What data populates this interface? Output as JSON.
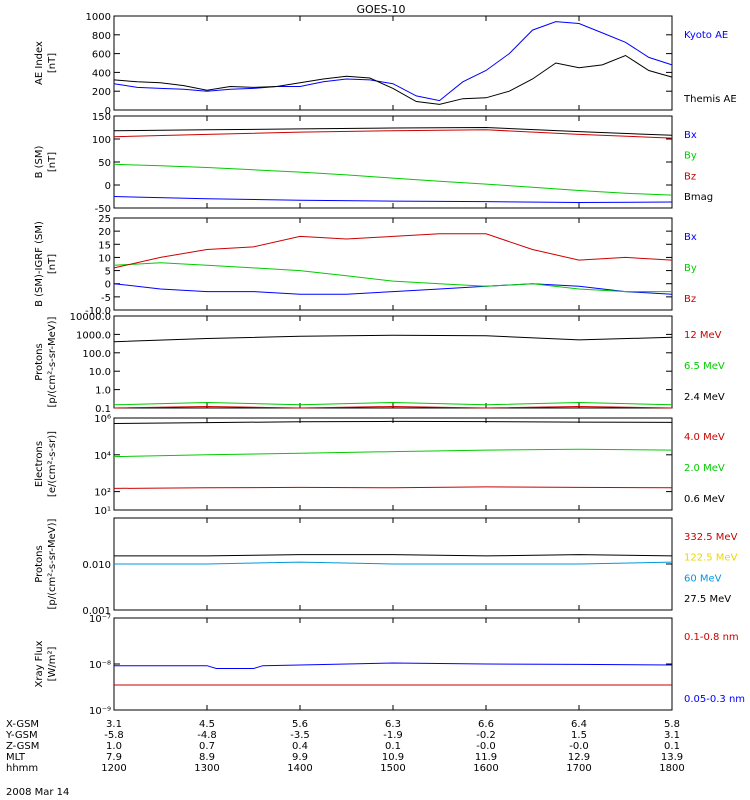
{
  "title": "GOES-10",
  "date_label": "2008 Mar 14",
  "chart_data": [
    {
      "type": "line",
      "ylabel": [
        "AE Index",
        "[nT]"
      ],
      "ylim": [
        0,
        1000
      ],
      "log": false,
      "yticks": [
        0,
        200,
        400,
        600,
        800,
        1000
      ],
      "ytick_labels": [
        "0",
        "200",
        "400",
        "600",
        "800",
        "1000"
      ],
      "legend": [
        {
          "label": "Kyoto AE",
          "color": "#0000ff"
        },
        {
          "label": "Themis AE",
          "color": "#000000"
        }
      ],
      "series": [
        {
          "name": "Kyoto AE",
          "color": "#0000ff",
          "x": [
            12.0,
            12.25,
            12.5,
            12.75,
            13.0,
            13.25,
            13.5,
            13.75,
            14.0,
            14.25,
            14.5,
            14.75,
            15.0,
            15.25,
            15.5,
            15.75,
            16.0,
            16.25,
            16.5,
            16.75,
            17.0,
            17.25,
            17.5,
            17.75,
            18.0
          ],
          "y": [
            280,
            240,
            230,
            220,
            200,
            220,
            230,
            250,
            250,
            300,
            330,
            320,
            280,
            150,
            100,
            300,
            420,
            600,
            850,
            940,
            920,
            820,
            720,
            560,
            480
          ]
        },
        {
          "name": "Themis AE",
          "color": "#000000",
          "x": [
            12.0,
            12.25,
            12.5,
            12.75,
            13.0,
            13.25,
            13.5,
            13.75,
            14.0,
            14.25,
            14.5,
            14.75,
            15.0,
            15.25,
            15.5,
            15.75,
            16.0,
            16.25,
            16.5,
            16.75,
            17.0,
            17.25,
            17.5,
            17.75,
            18.0
          ],
          "y": [
            320,
            300,
            290,
            260,
            210,
            250,
            240,
            250,
            290,
            330,
            360,
            340,
            230,
            90,
            60,
            120,
            130,
            200,
            330,
            500,
            450,
            480,
            580,
            420,
            350
          ]
        }
      ]
    },
    {
      "type": "line",
      "ylabel": [
        "B (SM)",
        "[nT]"
      ],
      "ylim": [
        -50,
        150
      ],
      "log": false,
      "yticks": [
        -50,
        0,
        50,
        100,
        150
      ],
      "ytick_labels": [
        "-50",
        "0",
        "50",
        "100",
        "150"
      ],
      "legend": [
        {
          "label": "Bx",
          "color": "#0000ff"
        },
        {
          "label": "By",
          "color": "#00cc00"
        },
        {
          "label": "Bz",
          "color": "#cc0000"
        },
        {
          "label": "Bmag",
          "color": "#000000"
        }
      ],
      "series": [
        {
          "name": "Bx",
          "color": "#0000ff",
          "x": [
            12.0,
            13.0,
            14.0,
            15.0,
            16.0,
            17.0,
            18.0
          ],
          "y": [
            -25,
            -30,
            -33,
            -35,
            -36,
            -38,
            -37
          ]
        },
        {
          "name": "By",
          "color": "#00cc00",
          "x": [
            12.0,
            12.5,
            13.0,
            13.5,
            14.0,
            14.5,
            15.0,
            15.5,
            16.0,
            16.5,
            17.0,
            17.5,
            18.0
          ],
          "y": [
            45,
            42,
            38,
            33,
            28,
            22,
            15,
            8,
            2,
            -5,
            -12,
            -18,
            -22
          ]
        },
        {
          "name": "Bz",
          "color": "#cc0000",
          "x": [
            12.0,
            13.0,
            14.0,
            15.0,
            16.0,
            17.0,
            18.0
          ],
          "y": [
            105,
            110,
            115,
            118,
            120,
            110,
            102
          ]
        },
        {
          "name": "Bmag",
          "color": "#000000",
          "x": [
            12.0,
            13.0,
            14.0,
            15.0,
            16.0,
            17.0,
            18.0
          ],
          "y": [
            118,
            120,
            122,
            124,
            125,
            116,
            108
          ]
        }
      ]
    },
    {
      "type": "line",
      "ylabel": [
        "B (SM)-IGRF (SM)",
        "[nT]"
      ],
      "ylim": [
        -10,
        25
      ],
      "log": false,
      "yticks": [
        -10,
        -5,
        0,
        5,
        10,
        15,
        20,
        25
      ],
      "ytick_labels": [
        "-10.0",
        "-5",
        "0",
        "5",
        "10",
        "15",
        "20",
        "25"
      ],
      "legend": [
        {
          "label": "Bx",
          "color": "#0000ff"
        },
        {
          "label": "By",
          "color": "#00cc00"
        },
        {
          "label": "Bz",
          "color": "#cc0000"
        }
      ],
      "series": [
        {
          "name": "Bx",
          "color": "#0000ff",
          "x": [
            12.0,
            12.5,
            13.0,
            13.5,
            14.0,
            14.5,
            15.0,
            15.5,
            16.0,
            16.5,
            17.0,
            17.5,
            18.0
          ],
          "y": [
            0,
            -2,
            -3,
            -3,
            -4,
            -4,
            -3,
            -2,
            -1,
            0,
            -1,
            -3,
            -4
          ]
        },
        {
          "name": "By",
          "color": "#00cc00",
          "x": [
            12.0,
            12.5,
            13.0,
            13.5,
            14.0,
            14.5,
            15.0,
            15.5,
            16.0,
            16.5,
            17.0,
            17.5,
            18.0
          ],
          "y": [
            7,
            8,
            7,
            6,
            5,
            3,
            1,
            0,
            -1,
            0,
            -2,
            -3,
            -3
          ]
        },
        {
          "name": "Bz",
          "color": "#cc0000",
          "x": [
            12.0,
            12.5,
            13.0,
            13.5,
            14.0,
            14.5,
            15.0,
            15.5,
            16.0,
            16.5,
            17.0,
            17.5,
            18.0
          ],
          "y": [
            6,
            10,
            13,
            14,
            18,
            17,
            18,
            19,
            19,
            13,
            9,
            10,
            9
          ]
        }
      ]
    },
    {
      "type": "line",
      "ylabel": [
        "Protons",
        "[p/(cm²-s-sr-MeV)]"
      ],
      "ylim": [
        0.1,
        10000
      ],
      "log": true,
      "yticks": [
        0.1,
        1,
        10,
        100,
        1000,
        10000
      ],
      "ytick_labels": [
        "0.1",
        "1.0",
        "10.0",
        "100.0",
        "1000.0",
        "10000.0"
      ],
      "legend": [
        {
          "label": "12 MeV",
          "color": "#cc0000"
        },
        {
          "label": "6.5 MeV",
          "color": "#00cc00"
        },
        {
          "label": "2.4 MeV",
          "color": "#000000"
        }
      ],
      "series": [
        {
          "name": "2.4 MeV",
          "color": "#000000",
          "x": [
            12.0,
            13.0,
            14.0,
            15.0,
            16.0,
            17.0,
            18.0
          ],
          "y": [
            400,
            600,
            800,
            900,
            850,
            500,
            700
          ]
        },
        {
          "name": "6.5 MeV",
          "color": "#00cc00",
          "x": [
            12.0,
            13.0,
            14.0,
            15.0,
            16.0,
            17.0,
            18.0
          ],
          "y": [
            0.15,
            0.2,
            0.15,
            0.2,
            0.15,
            0.2,
            0.15
          ]
        },
        {
          "name": "12 MeV",
          "color": "#cc0000",
          "x": [
            12.0,
            13.0,
            14.0,
            15.0,
            16.0,
            17.0,
            18.0
          ],
          "y": [
            0.1,
            0.12,
            0.1,
            0.12,
            0.1,
            0.12,
            0.1
          ]
        }
      ]
    },
    {
      "type": "line",
      "ylabel": [
        "Electrons",
        "[e/(cm²-s-sr)]"
      ],
      "ylim": [
        10,
        1000000
      ],
      "log": true,
      "yticks": [
        10,
        100,
        10000,
        1000000
      ],
      "ytick_labels": [
        "10¹",
        "10²",
        "10⁴",
        "10⁶"
      ],
      "legend": [
        {
          "label": "4.0 MeV",
          "color": "#cc0000"
        },
        {
          "label": "2.0 MeV",
          "color": "#00cc00"
        },
        {
          "label": "0.6 MeV",
          "color": "#000000"
        }
      ],
      "series": [
        {
          "name": "0.6 MeV",
          "color": "#000000",
          "x": [
            12.0,
            13.0,
            14.0,
            15.0,
            16.0,
            17.0,
            18.0
          ],
          "y": [
            500000,
            560000,
            620000,
            650000,
            640000,
            600000,
            580000
          ]
        },
        {
          "name": "2.0 MeV",
          "color": "#00cc00",
          "x": [
            12.0,
            13.0,
            14.0,
            15.0,
            16.0,
            17.0,
            18.0
          ],
          "y": [
            8000,
            10000,
            12000,
            15000,
            18000,
            20000,
            18000
          ]
        },
        {
          "name": "4.0 MeV",
          "color": "#cc0000",
          "x": [
            12.0,
            13.0,
            14.0,
            15.0,
            16.0,
            17.0,
            18.0
          ],
          "y": [
            150,
            160,
            170,
            160,
            180,
            170,
            160
          ]
        }
      ]
    },
    {
      "type": "line",
      "ylabel": [
        "Protons",
        "[p/(cm²-s-sr-MeV)]"
      ],
      "ylim": [
        0.001,
        0.1
      ],
      "log": true,
      "yticks": [
        0.001,
        0.01
      ],
      "ytick_labels": [
        "0.001",
        "0.010"
      ],
      "legend": [
        {
          "label": "332.5 MeV",
          "color": "#cc0000"
        },
        {
          "label": "122.5 MeV",
          "color": "#e8d800"
        },
        {
          "label": "60 MeV",
          "color": "#0099dd"
        },
        {
          "label": "27.5 MeV",
          "color": "#000000"
        }
      ],
      "series": [
        {
          "name": "27.5 MeV",
          "color": "#000000",
          "x": [
            12.0,
            13.0,
            14.0,
            15.0,
            16.0,
            17.0,
            18.0
          ],
          "y": [
            0.015,
            0.015,
            0.016,
            0.016,
            0.015,
            0.016,
            0.015
          ]
        },
        {
          "name": "60 MeV",
          "color": "#0099dd",
          "x": [
            12.0,
            13.0,
            14.0,
            15.0,
            16.0,
            17.0,
            18.0
          ],
          "y": [
            0.01,
            0.01,
            0.011,
            0.01,
            0.01,
            0.01,
            0.011
          ]
        }
      ]
    },
    {
      "type": "line",
      "ylabel": [
        "Xray Flux",
        "[W/m²]"
      ],
      "ylim": [
        1e-09,
        1e-07
      ],
      "log": true,
      "yticks": [
        1e-09,
        1e-08,
        1e-07
      ],
      "ytick_labels": [
        "10⁻⁹",
        "10⁻⁸",
        "10⁻⁷"
      ],
      "legend": [
        {
          "label": "0.1-0.8 nm",
          "color": "#cc0000"
        },
        {
          "label": "0.05-0.3 nm",
          "color": "#0000ff"
        }
      ],
      "series": [
        {
          "name": "0.1-0.8 nm",
          "color": "#cc0000",
          "x": [
            12.0,
            18.0
          ],
          "y": [
            3.5e-09,
            3.5e-09
          ]
        },
        {
          "name": "0.05-0.3 nm",
          "color": "#0000ff",
          "x": [
            12.0,
            13.0,
            13.1,
            13.5,
            13.6,
            14.0,
            15.0,
            16.0,
            17.0,
            18.0
          ],
          "y": [
            9.2e-09,
            9.2e-09,
            8e-09,
            8e-09,
            9.2e-09,
            9.5e-09,
            1.05e-08,
            1e-08,
            9.8e-09,
            9.5e-09
          ]
        }
      ]
    }
  ],
  "x_axis": {
    "xlim": [
      12.0,
      18.0
    ],
    "ticks": [
      12.0,
      13.0,
      14.0,
      15.0,
      16.0,
      17.0,
      18.0
    ],
    "rows": [
      {
        "label": "X-GSM",
        "values": [
          "3.1",
          "4.5",
          "5.6",
          "6.3",
          "6.6",
          "6.4",
          "5.8"
        ]
      },
      {
        "label": "Y-GSM",
        "values": [
          "-5.8",
          "-4.8",
          "-3.5",
          "-1.9",
          "-0.2",
          "1.5",
          "3.1"
        ]
      },
      {
        "label": "Z-GSM",
        "values": [
          "1.0",
          "0.7",
          "0.4",
          "0.1",
          "-0.0",
          "-0.0",
          "0.1"
        ]
      },
      {
        "label": "MLT",
        "values": [
          "7.9",
          "8.9",
          "9.9",
          "10.9",
          "11.9",
          "12.9",
          "13.9"
        ]
      },
      {
        "label": "hhmm",
        "values": [
          "1200",
          "1300",
          "1400",
          "1500",
          "1600",
          "1700",
          "1800"
        ]
      }
    ]
  }
}
